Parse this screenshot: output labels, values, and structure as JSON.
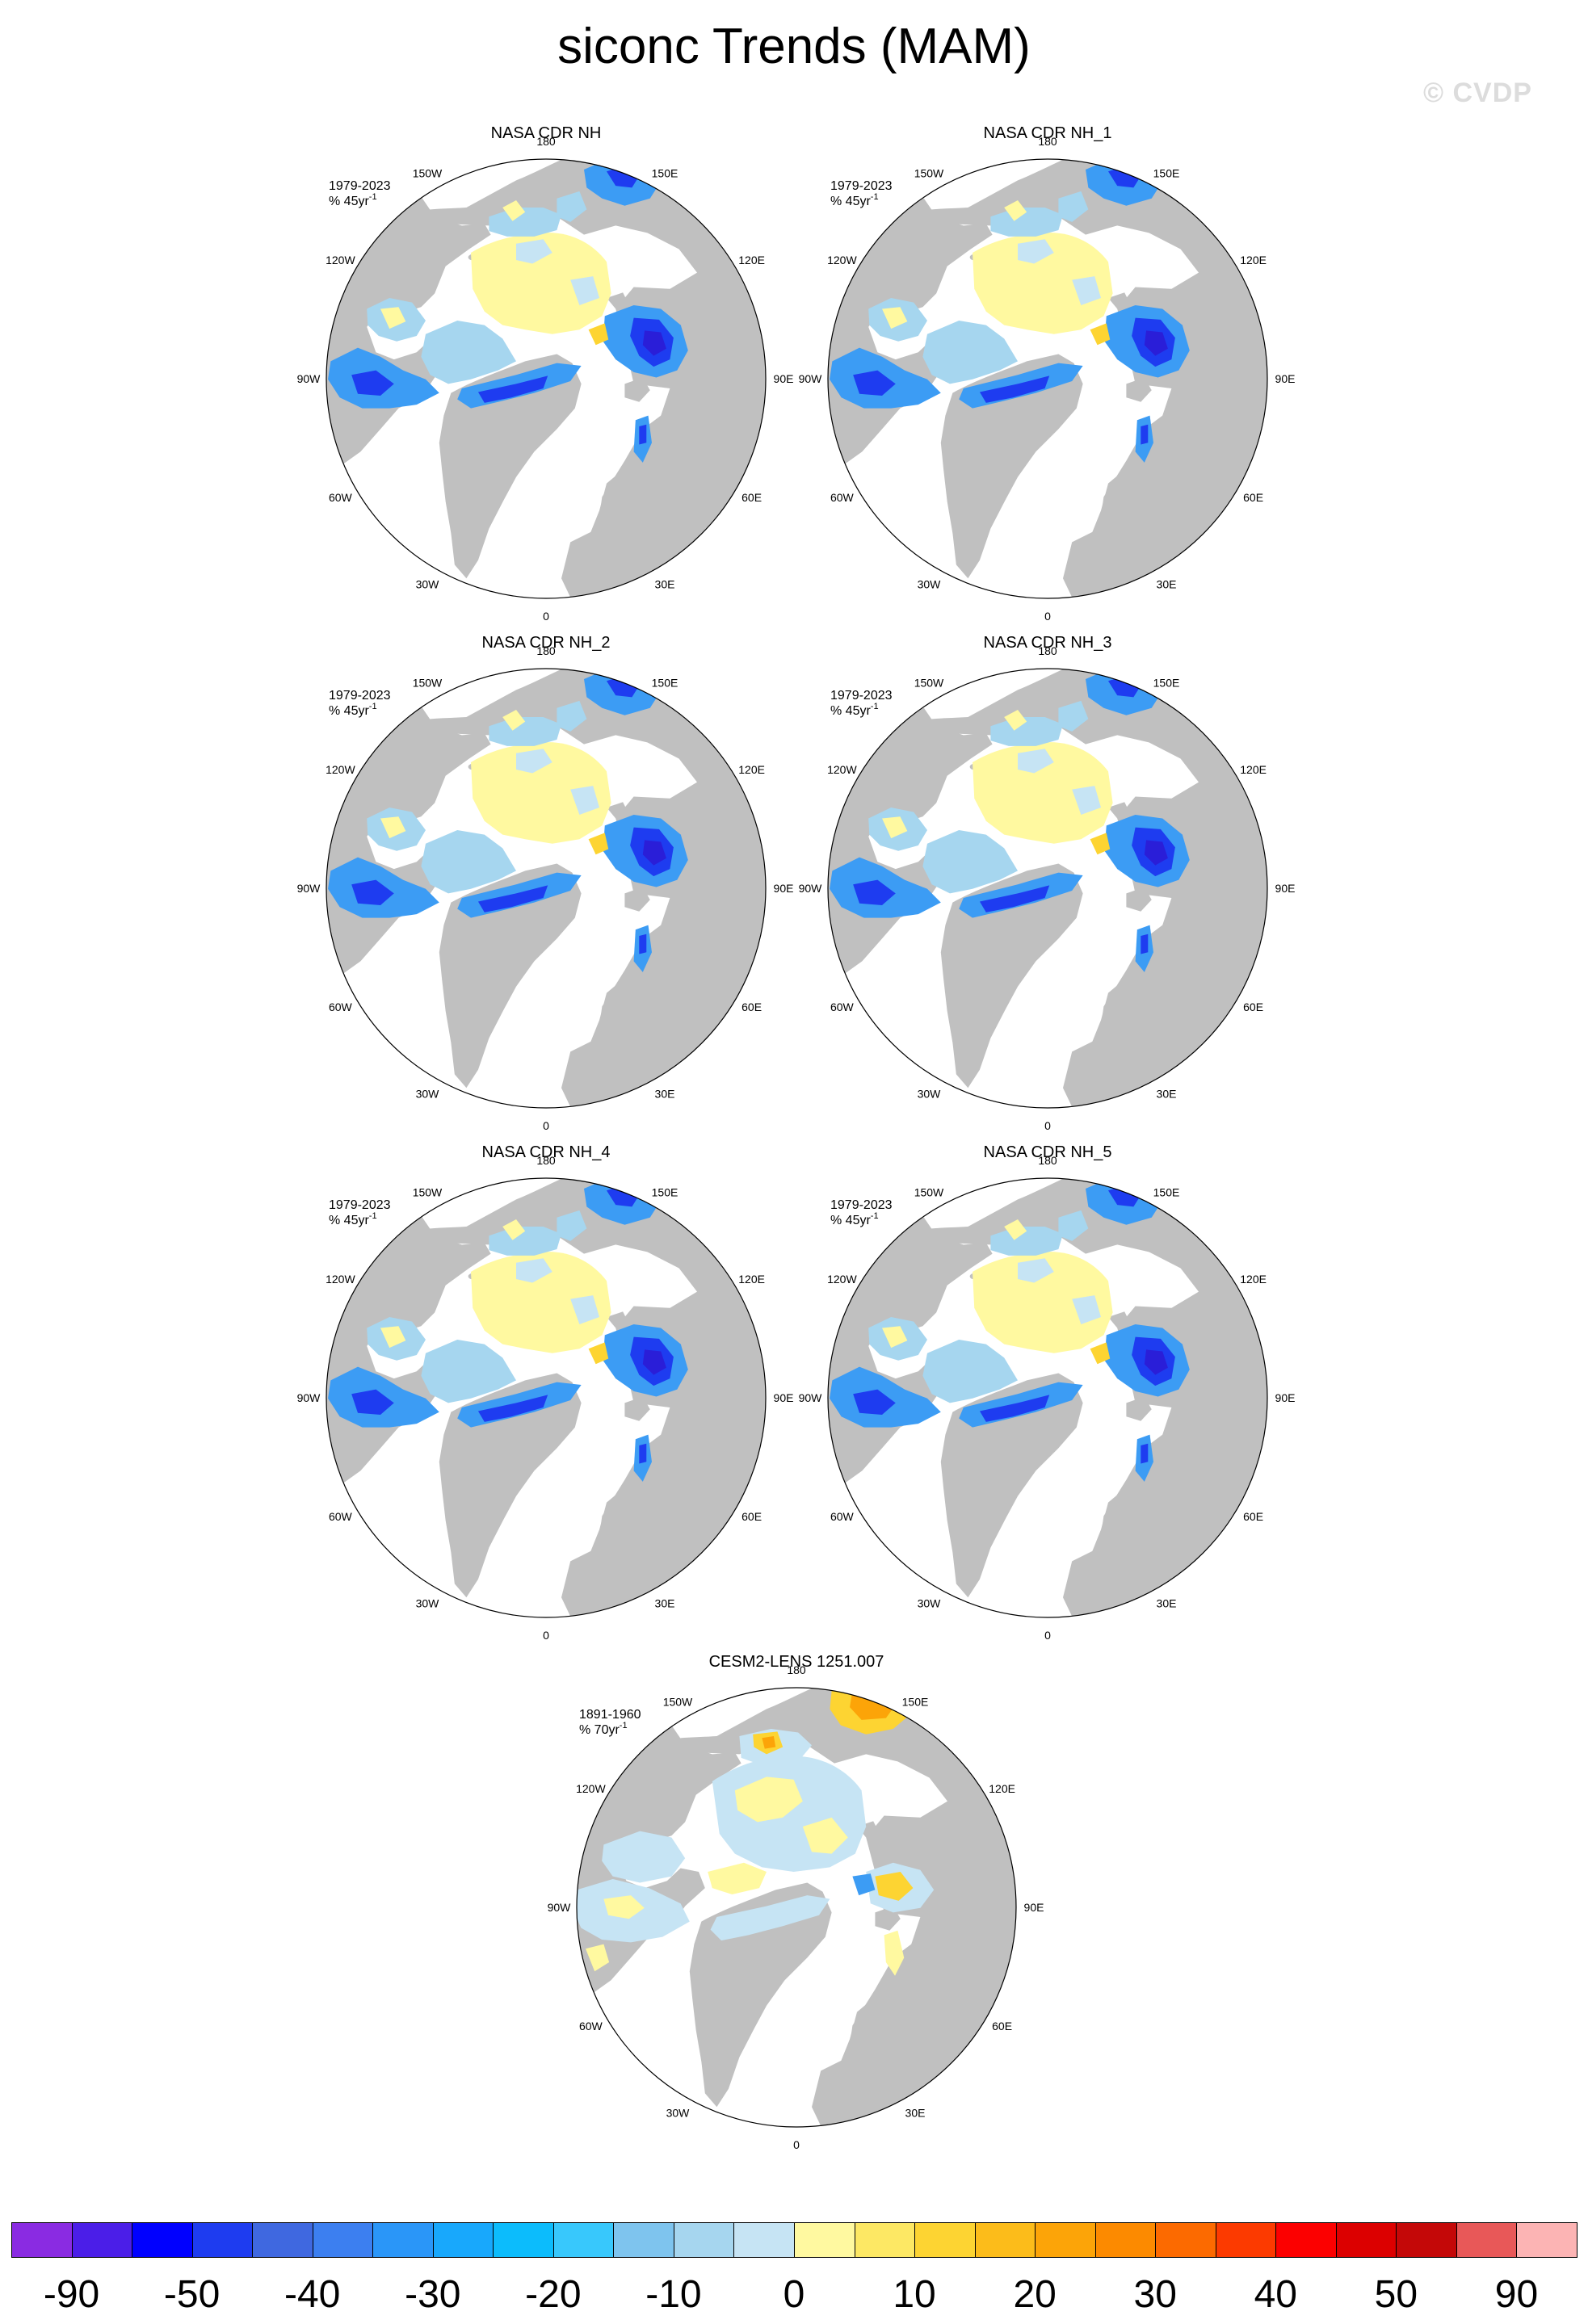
{
  "title": "siconc Trends (MAM)",
  "watermark": "© CVDP",
  "lon_labels": [
    "180",
    "150E",
    "120E",
    "90E",
    "60E",
    "30E",
    "0",
    "30W",
    "60W",
    "90W",
    "120W",
    "150W"
  ],
  "panels": [
    {
      "name": "NASA CDR NH",
      "period": "1979-2023",
      "units": "% 45yr",
      "units_sup": "-1"
    },
    {
      "name": "NASA CDR NH_1",
      "period": "1979-2023",
      "units": "% 45yr",
      "units_sup": "-1"
    },
    {
      "name": "NASA CDR NH_2",
      "period": "1979-2023",
      "units": "% 45yr",
      "units_sup": "-1"
    },
    {
      "name": "NASA CDR NH_3",
      "period": "1979-2023",
      "units": "% 45yr",
      "units_sup": "-1"
    },
    {
      "name": "NASA CDR NH_4",
      "period": "1979-2023",
      "units": "% 45yr",
      "units_sup": "-1"
    },
    {
      "name": "NASA CDR NH_5",
      "period": "1979-2023",
      "units": "% 45yr",
      "units_sup": "-1"
    },
    {
      "name": "CESM2-LENS 1251.007",
      "period": "1891-1960",
      "units": "% 70yr",
      "units_sup": "-1"
    }
  ],
  "colorbar": {
    "labels": [
      "-90",
      "-50",
      "-40",
      "-30",
      "-20",
      "-10",
      "0",
      "10",
      "20",
      "30",
      "40",
      "50",
      "90"
    ],
    "colors": [
      "#8a2be2",
      "#4b1ee8",
      "#0000ff",
      "#1e3cf0",
      "#3f68e0",
      "#3c7ff0",
      "#2a96f8",
      "#18a8fc",
      "#0cbcfc",
      "#38c8fc",
      "#7ec4ee",
      "#a6d6ef",
      "#c6e4f4",
      "#fff9a0",
      "#fde864",
      "#fdd432",
      "#fcbc1a",
      "#fca408",
      "#fc8a00",
      "#fc6a00",
      "#fc3a00",
      "#fc0000",
      "#dc0000",
      "#c40808",
      "#e85858",
      "#fcb4b4"
    ]
  },
  "map_colors": {
    "land": "#c0c0c0",
    "ocean": "#ffffff",
    "decline_light": "#a6d6ef",
    "decline_mid": "#3c9cf4",
    "decline_strong": "#1e3cf0",
    "decline_extreme": "#2a1ed8",
    "neutral": "#c6e4f4",
    "increase_light": "#fff9a0",
    "increase_mid": "#fdd432",
    "increase_strong": "#fca408"
  }
}
